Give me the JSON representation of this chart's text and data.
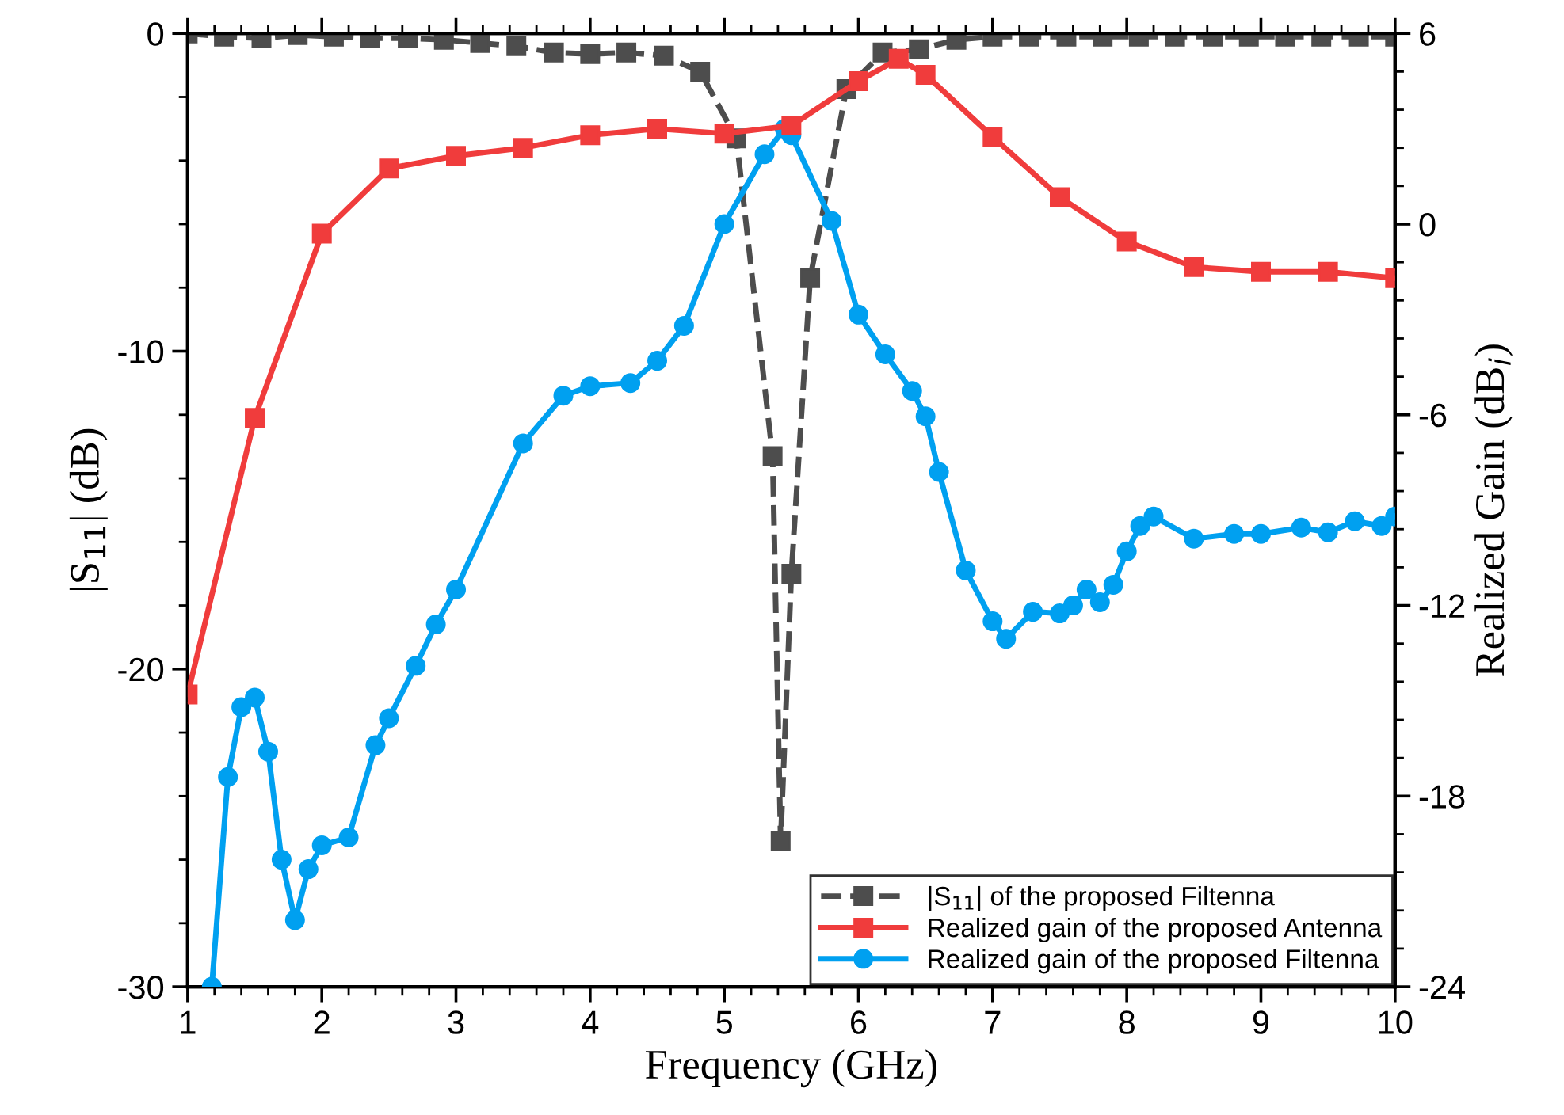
{
  "chart_data": {
    "type": "line",
    "xlabel": "Frequency (GHz)",
    "ylabel": "|S$_{11}$| (dB)",
    "y2label": "Realized Gain (dB$_{i}$)",
    "xlim": [
      1,
      10
    ],
    "xticks": [
      1,
      2,
      3,
      4,
      5,
      6,
      7,
      8,
      9,
      10
    ],
    "ylim": [
      -30,
      0
    ],
    "yticks": [
      -30,
      -20,
      -10,
      0
    ],
    "y2lim": [
      -24,
      6
    ],
    "y2ticks": [
      -24,
      -18,
      -12,
      -6,
      0,
      6
    ],
    "grid": false,
    "legend": "bottom right",
    "series": [
      {
        "name": "|S$_{11}$| of the proposed Filtenna",
        "color": "#4d4d4d",
        "marker": "square",
        "line_style": "dashed",
        "x": [
          1,
          1.27,
          1.55,
          1.82,
          2.09,
          2.36,
          2.64,
          2.91,
          3.18,
          3.45,
          3.73,
          4.0,
          4.27,
          4.55,
          4.82,
          5.09,
          5.36,
          5.42,
          5.5,
          5.64,
          5.91,
          6.18,
          6.45,
          6.73,
          7.0,
          7.27,
          7.55,
          7.82,
          8.09,
          8.36,
          8.64,
          8.91,
          9.18,
          9.45,
          9.73,
          10.0
        ],
        "values": [
          0,
          -0.1,
          -0.15,
          -0.05,
          -0.1,
          -0.15,
          -0.15,
          -0.2,
          -0.3,
          -0.4,
          -0.6,
          -0.65,
          -0.6,
          -0.7,
          -1.2,
          -3.3,
          -13.3,
          -25.4,
          -17,
          -7.7,
          -1.75,
          -0.6,
          -0.5,
          -0.2,
          -0.1,
          -0.1,
          -0.1,
          -0.1,
          -0.1,
          -0.1,
          -0.1,
          -0.1,
          -0.1,
          -0.1,
          -0.1,
          -0.1
        ]
      },
      {
        "name": "Realized gain of the proposed Antenna",
        "color": "#f03c3c",
        "marker": "square",
        "line_style": "solid",
        "axis": "y2",
        "x": [
          1,
          1.5,
          2,
          2.5,
          3,
          3.5,
          4,
          4.5,
          5,
          5.5,
          6,
          6.3,
          6.5,
          7,
          7.5,
          8,
          8.5,
          9,
          9.5,
          10
        ],
        "values": [
          -14.8,
          -6.1,
          -0.3,
          1.75,
          2.15,
          2.4,
          2.8,
          3.0,
          2.85,
          3.1,
          4.5,
          5.2,
          4.7,
          2.75,
          0.85,
          -0.55,
          -1.35,
          -1.5,
          -1.5,
          -1.7
        ]
      },
      {
        "name": "Realized gain of the proposed Filtenna",
        "color": "#00a0f0",
        "marker": "circle",
        "line_style": "solid",
        "axis": "y2",
        "x": [
          1.18,
          1.3,
          1.4,
          1.5,
          1.6,
          1.7,
          1.8,
          1.9,
          2,
          2.2,
          2.4,
          2.5,
          2.7,
          2.85,
          3,
          3.5,
          3.8,
          4,
          4.3,
          4.5,
          4.7,
          5,
          5.3,
          5.45,
          5.5,
          5.8,
          6,
          6.2,
          6.4,
          6.5,
          6.6,
          6.8,
          7,
          7.1,
          7.3,
          7.5,
          7.6,
          7.7,
          7.8,
          7.9,
          8,
          8.1,
          8.2,
          8.5,
          8.8,
          9,
          9.3,
          9.5,
          9.7,
          9.9,
          10
        ],
        "values": [
          -24,
          -17.4,
          -15.2,
          -14.9,
          -16.6,
          -20,
          -21.9,
          -20.3,
          -19.55,
          -19.3,
          -16.4,
          -15.55,
          -13.9,
          -12.6,
          -11.5,
          -6.9,
          -5.4,
          -5.1,
          -5.0,
          -4.3,
          -3.2,
          0.0,
          2.2,
          3.0,
          2.8,
          0.1,
          -2.85,
          -4.1,
          -5.25,
          -6.05,
          -7.8,
          -10.9,
          -12.5,
          -13.05,
          -12.2,
          -12.25,
          -12.0,
          -11.5,
          -11.9,
          -11.35,
          -10.3,
          -9.5,
          -9.2,
          -9.9,
          -9.75,
          -9.75,
          -9.55,
          -9.7,
          -9.35,
          -9.5,
          -9.2
        ]
      }
    ]
  }
}
